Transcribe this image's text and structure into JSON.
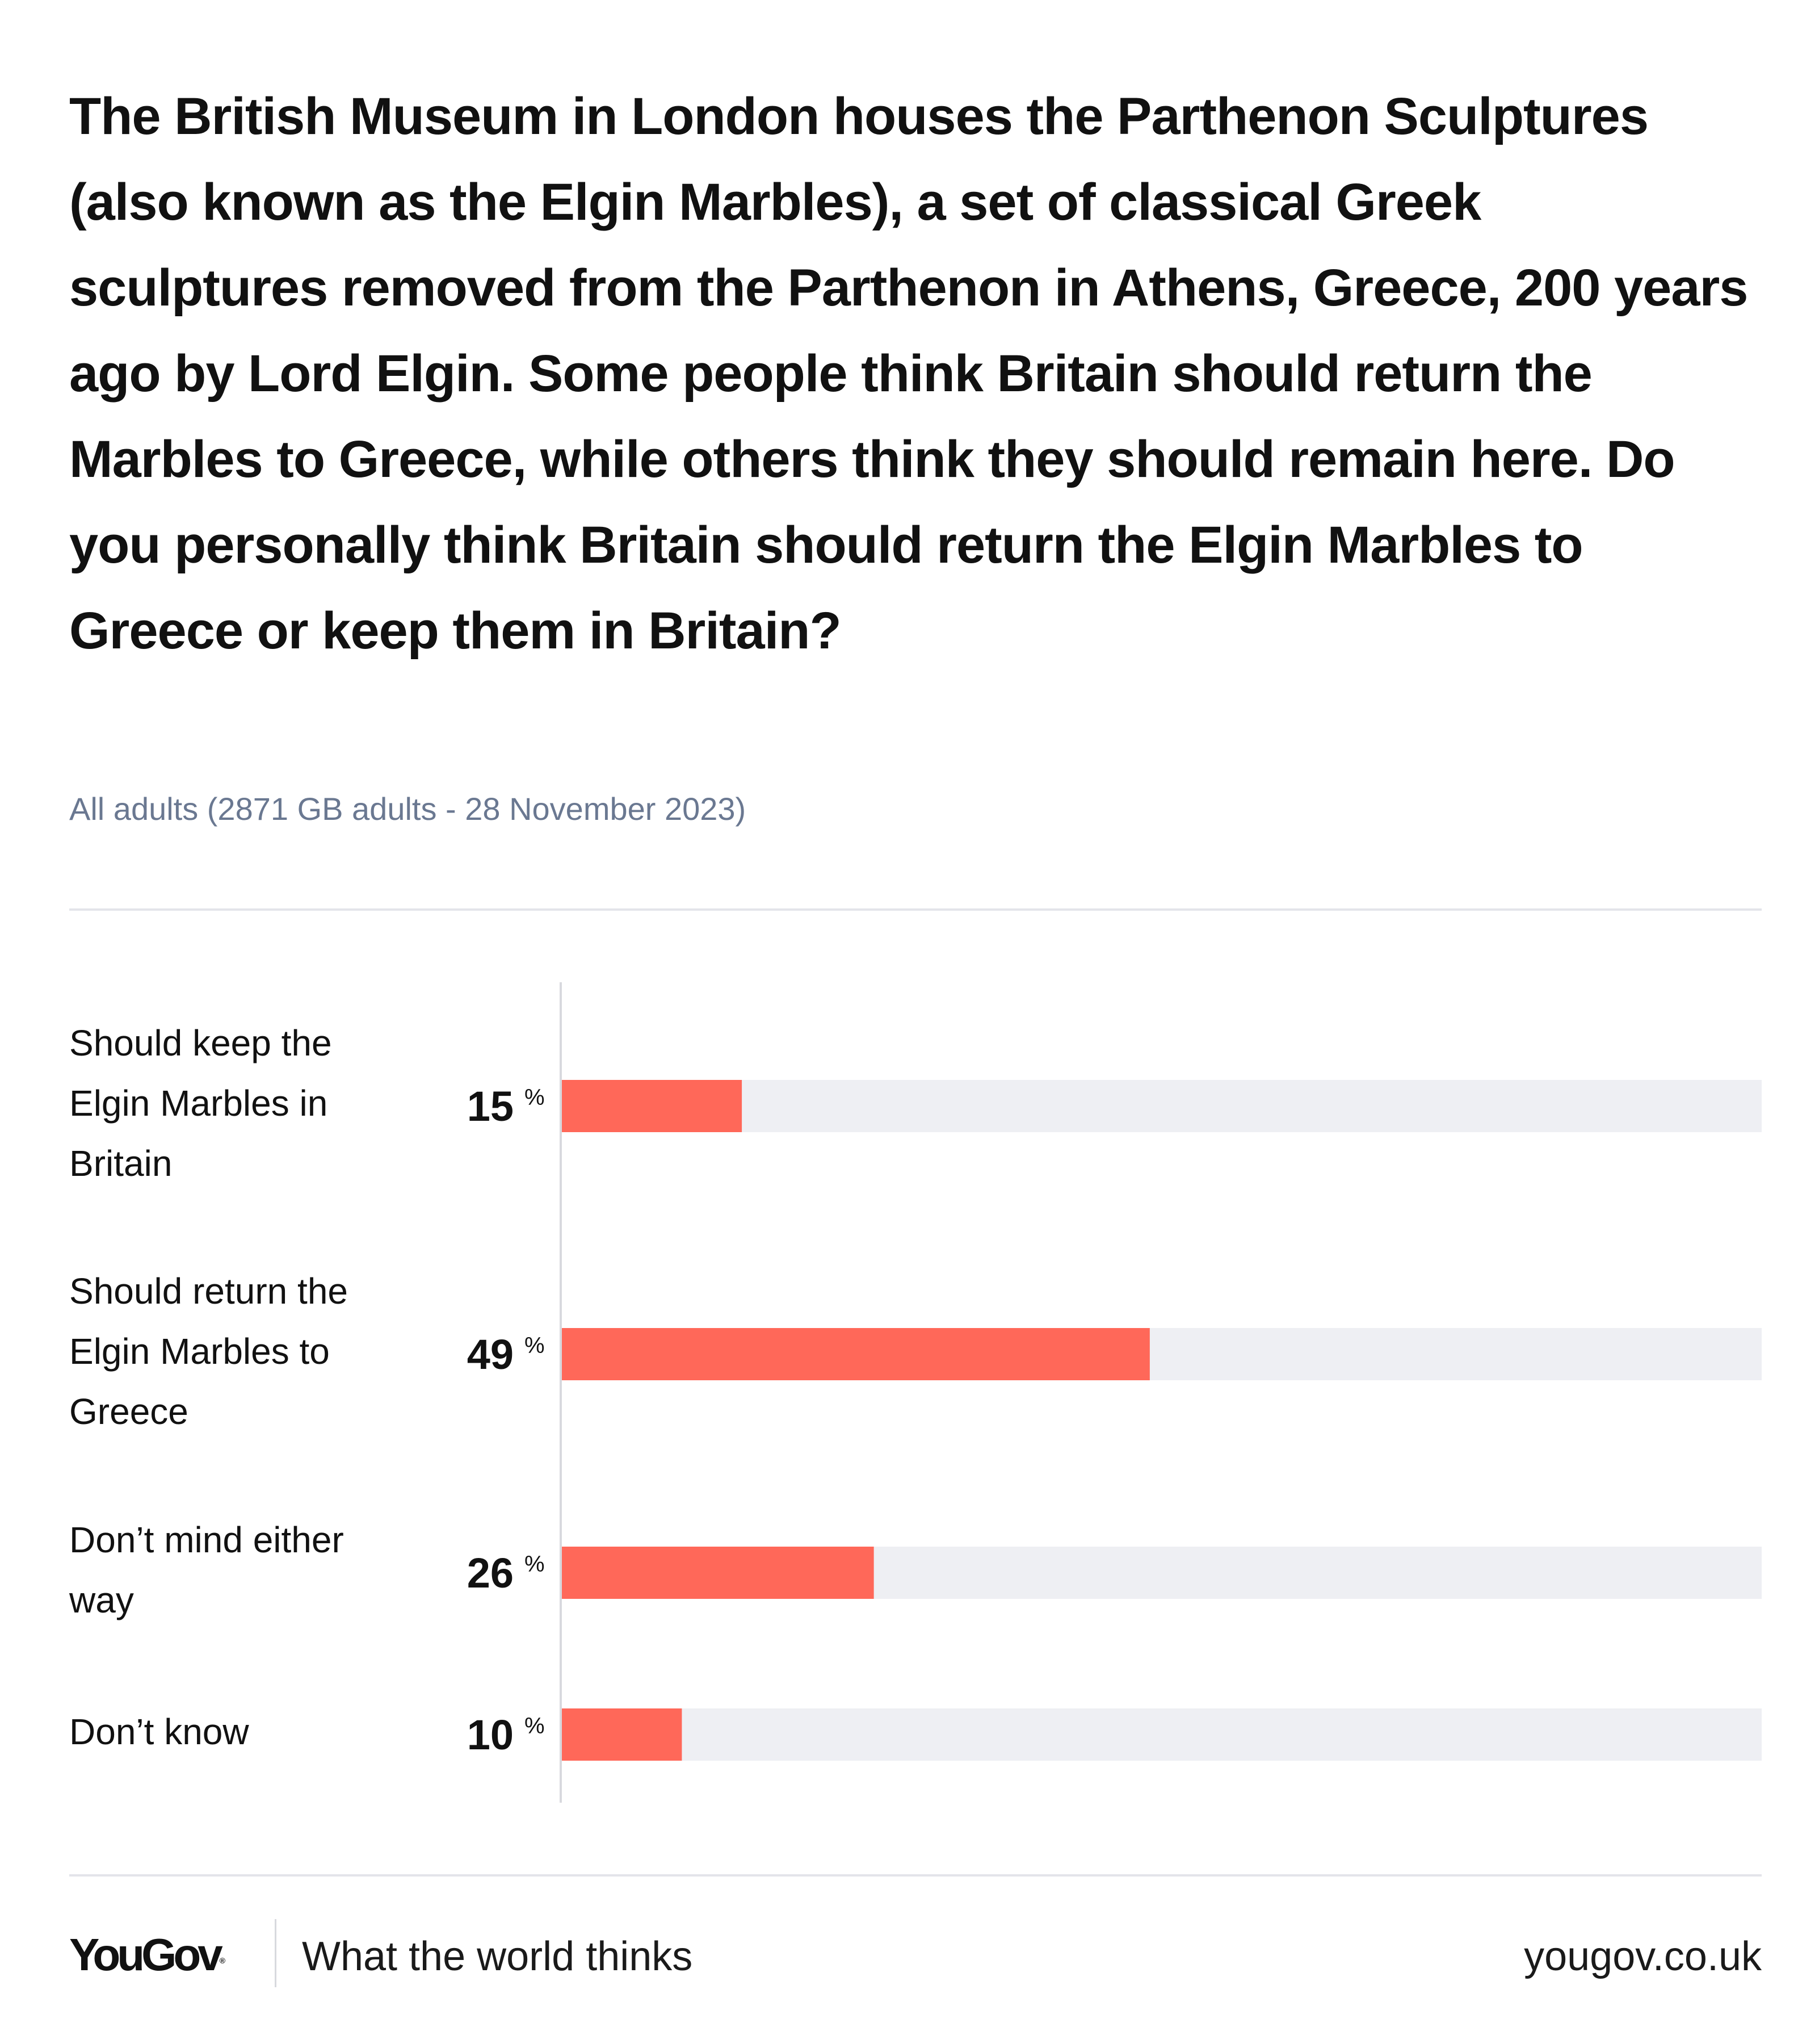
{
  "chart_data": {
    "type": "bar",
    "orientation": "horizontal",
    "title": "The British Museum in London houses the Parthenon Sculptures (also known as the Elgin Marbles), a set of classical Greek sculptures removed from the Parthenon in Athens, Greece, 200 years ago by Lord Elgin. Some people think Britain should return the Marbles to Greece, while others think they should remain here. Do you personally think Britain should return the Elgin Marbles to Greece or keep them in Britain?",
    "subtitle": "All adults (2871 GB adults - 28 November 2023)",
    "categories": [
      [
        "Should keep the",
        "Elgin Marbles in",
        "Britain"
      ],
      [
        "Should return the",
        "Elgin Marbles to",
        "Greece"
      ],
      [
        "Don’t mind either",
        "way"
      ],
      [
        "Don’t know"
      ]
    ],
    "values": [
      15,
      49,
      26,
      10
    ],
    "unit": "%",
    "xlim": [
      0,
      100
    ],
    "grid": false,
    "legend": "none",
    "colors": {
      "bar": "#ff6859",
      "track": "#eeeff3",
      "axis": "#d8d9de"
    }
  },
  "footer": {
    "logo": "YouGov",
    "tagline": "What the world thinks",
    "site": "yougov.co.uk"
  }
}
